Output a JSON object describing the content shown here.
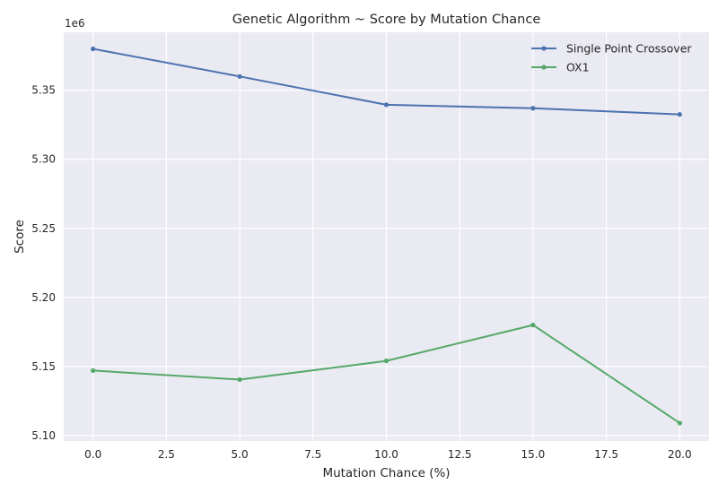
{
  "chart_data": {
    "type": "line",
    "title": "Genetic Algorithm ~ Score by Mutation Chance",
    "xlabel": "Mutation Chance (%)",
    "ylabel": "Score",
    "y_offset_label": "1e6",
    "x": [
      0,
      5,
      10,
      15,
      20
    ],
    "xlim": [
      -1,
      21
    ],
    "ylim": [
      5.096,
      5.392
    ],
    "x_ticks": [
      0,
      2.5,
      5,
      7.5,
      10,
      12.5,
      15,
      17.5,
      20
    ],
    "x_tick_labels": [
      "0.0",
      "2.5",
      "5.0",
      "7.5",
      "10.0",
      "12.5",
      "15.0",
      "17.5",
      "20.0"
    ],
    "y_ticks": [
      5.1,
      5.15,
      5.2,
      5.25,
      5.3,
      5.35
    ],
    "y_tick_labels": [
      "5.10",
      "5.15",
      "5.20",
      "5.25",
      "5.30",
      "5.35"
    ],
    "grid": true,
    "legend_position": "top-right",
    "series": [
      {
        "name": "Single Point Crossover",
        "color": "#4c72b0",
        "values": [
          5.38,
          5.36,
          5.3395,
          5.337,
          5.3325
        ]
      },
      {
        "name": "OX1",
        "color": "#55a868",
        "values": [
          5.147,
          5.1405,
          5.154,
          5.18,
          5.109
        ]
      }
    ]
  }
}
